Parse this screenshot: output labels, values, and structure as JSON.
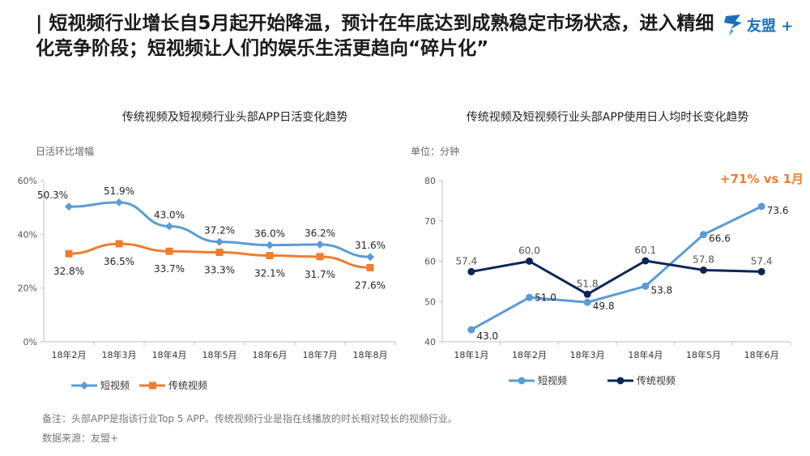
{
  "page": {
    "title": "| 短视频行业增长自5月起开始降温，预计在年底达到成熟稳定市场状态，进入精细化竞争阶段；短视频让人们的娱乐生活更趋向“碎片化”",
    "logo_text": "友盟 +",
    "footnote": "备注：头部APP是指该行业Top 5 APP。传统视频行业是指在线播放的时长相对较长的视频行业。",
    "source": "数据来源：友盟+"
  },
  "chart_data": [
    {
      "type": "line",
      "title": "传统视频及短视频行业头部APP日活变化趋势",
      "ylabel": "日活环比增幅",
      "categories": [
        "18年2月",
        "18年3月",
        "18年4月",
        "18年5月",
        "18年6月",
        "18年7月",
        "18年8月"
      ],
      "ylim": [
        0,
        60
      ],
      "yticks": [
        0,
        20,
        40,
        60
      ],
      "ytick_labels": [
        "0%",
        "20%",
        "40%",
        "60%"
      ],
      "series": [
        {
          "name": "短视频",
          "color": "#5b9bd5",
          "marker": "diamond",
          "values": [
            50.3,
            51.9,
            43.0,
            37.2,
            36.0,
            36.2,
            31.6
          ],
          "labels": [
            "50.3%",
            "51.9%",
            "43.0%",
            "37.2%",
            "36.0%",
            "36.2%",
            "31.6%"
          ]
        },
        {
          "name": "传统视频",
          "color": "#ed7d31",
          "marker": "square",
          "values": [
            32.8,
            36.5,
            33.7,
            33.3,
            32.1,
            31.7,
            27.6
          ],
          "labels": [
            "32.8%",
            "36.5%",
            "33.7%",
            "33.3%",
            "32.1%",
            "31.7%",
            "27.6%"
          ]
        }
      ]
    },
    {
      "type": "line",
      "title": "传统视频及短视频行业头部APP使用日人均时长变化趋势",
      "ylabel": "单位：分钟",
      "annotation": "+71% vs 1月",
      "categories": [
        "18年1月",
        "18年2月",
        "18年3月",
        "18年4月",
        "18年5月",
        "18年6月"
      ],
      "ylim": [
        40,
        80
      ],
      "yticks": [
        40,
        50,
        60,
        70,
        80
      ],
      "ytick_labels": [
        "40",
        "50",
        "60",
        "70",
        "80"
      ],
      "series": [
        {
          "name": "短视频",
          "color": "#5b9bd5",
          "marker": "circle",
          "values": [
            43.0,
            51.0,
            49.8,
            53.8,
            66.6,
            73.6
          ],
          "labels": [
            "43.0",
            "51.0",
            "49.8",
            "53.8",
            "66.6",
            "73.6"
          ]
        },
        {
          "name": "传统视频",
          "color": "#0d2557",
          "marker": "circle",
          "values": [
            57.4,
            60.0,
            51.8,
            60.1,
            57.8,
            57.4
          ],
          "labels": [
            "57.4",
            "60.0",
            "51.8",
            "60.1",
            "57.8",
            "57.4"
          ]
        }
      ]
    }
  ]
}
